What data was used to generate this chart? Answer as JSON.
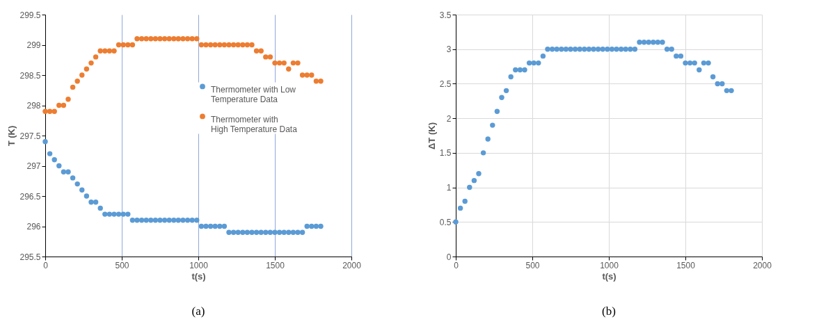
{
  "chart_data": [
    {
      "type": "scatter",
      "xlabel": "t(s)",
      "ylabel": "T (K)",
      "annotations": [
        "(a)"
      ],
      "x": [
        0,
        30,
        60,
        90,
        120,
        150,
        180,
        210,
        240,
        270,
        300,
        330,
        360,
        390,
        420,
        450,
        480,
        510,
        540,
        570,
        600,
        630,
        660,
        690,
        720,
        750,
        780,
        810,
        840,
        870,
        900,
        930,
        960,
        990,
        1020,
        1050,
        1080,
        1110,
        1140,
        1170,
        1200,
        1230,
        1260,
        1290,
        1320,
        1350,
        1380,
        1410,
        1440,
        1470,
        1500,
        1530,
        1560,
        1590,
        1620,
        1650,
        1680,
        1710,
        1740,
        1770,
        1800
      ],
      "series": [
        {
          "name": "Thermometer with Low Temperature Data",
          "color": "#5b9bd5",
          "values": [
            297.4,
            297.2,
            297.1,
            297.0,
            296.9,
            296.9,
            296.8,
            296.7,
            296.6,
            296.5,
            296.4,
            296.4,
            296.3,
            296.2,
            296.2,
            296.2,
            296.2,
            296.2,
            296.2,
            296.1,
            296.1,
            296.1,
            296.1,
            296.1,
            296.1,
            296.1,
            296.1,
            296.1,
            296.1,
            296.1,
            296.1,
            296.1,
            296.1,
            296.1,
            296.0,
            296.0,
            296.0,
            296.0,
            296.0,
            296.0,
            295.9,
            295.9,
            295.9,
            295.9,
            295.9,
            295.9,
            295.9,
            295.9,
            295.9,
            295.9,
            295.9,
            295.9,
            295.9,
            295.9,
            295.9,
            295.9,
            295.9,
            296.0,
            296.0,
            296.0,
            296.0
          ]
        },
        {
          "name": "Thermometer with High Temperature Data",
          "color": "#ed7d31",
          "values": [
            297.9,
            297.9,
            297.9,
            298.0,
            298.0,
            298.1,
            298.3,
            298.4,
            298.5,
            298.6,
            298.7,
            298.8,
            298.9,
            298.9,
            298.9,
            298.9,
            299.0,
            299.0,
            299.0,
            299.0,
            299.1,
            299.1,
            299.1,
            299.1,
            299.1,
            299.1,
            299.1,
            299.1,
            299.1,
            299.1,
            299.1,
            299.1,
            299.1,
            299.1,
            299.0,
            299.0,
            299.0,
            299.0,
            299.0,
            299.0,
            299.0,
            299.0,
            299.0,
            299.0,
            299.0,
            299.0,
            298.9,
            298.9,
            298.8,
            298.8,
            298.7,
            298.7,
            298.7,
            298.6,
            298.7,
            298.7,
            298.5,
            298.5,
            298.5,
            298.4,
            298.4
          ]
        }
      ],
      "xlim": [
        0,
        2000
      ],
      "xticks": [
        0,
        500,
        1000,
        1500,
        2000
      ],
      "ylim": [
        295.5,
        299.5
      ],
      "yticks": [
        295.5,
        296,
        296.5,
        297,
        297.5,
        298,
        298.5,
        299,
        299.5
      ],
      "grid": "x",
      "legend": "right",
      "marker": "circle"
    },
    {
      "type": "scatter",
      "xlabel": "t(s)",
      "ylabel": "ΔT (K)",
      "annotations": [
        "(b)"
      ],
      "x": [
        0,
        30,
        60,
        90,
        120,
        150,
        180,
        210,
        240,
        270,
        300,
        330,
        360,
        390,
        420,
        450,
        480,
        510,
        540,
        570,
        600,
        630,
        660,
        690,
        720,
        750,
        780,
        810,
        840,
        870,
        900,
        930,
        960,
        990,
        1020,
        1050,
        1080,
        1110,
        1140,
        1170,
        1200,
        1230,
        1260,
        1290,
        1320,
        1350,
        1380,
        1410,
        1440,
        1470,
        1500,
        1530,
        1560,
        1590,
        1620,
        1650,
        1680,
        1710,
        1740,
        1770,
        1800
      ],
      "series": [
        {
          "color": "#5b9bd5",
          "values": [
            0.5,
            0.7,
            0.8,
            1.0,
            1.1,
            1.2,
            1.5,
            1.7,
            1.9,
            2.1,
            2.3,
            2.4,
            2.6,
            2.7,
            2.7,
            2.7,
            2.8,
            2.8,
            2.8,
            2.9,
            3.0,
            3.0,
            3.0,
            3.0,
            3.0,
            3.0,
            3.0,
            3.0,
            3.0,
            3.0,
            3.0,
            3.0,
            3.0,
            3.0,
            3.0,
            3.0,
            3.0,
            3.0,
            3.0,
            3.0,
            3.1,
            3.1,
            3.1,
            3.1,
            3.1,
            3.1,
            3.0,
            3.0,
            2.9,
            2.9,
            2.8,
            2.8,
            2.8,
            2.7,
            2.8,
            2.8,
            2.6,
            2.5,
            2.5,
            2.4,
            2.4
          ]
        }
      ],
      "xlim": [
        0,
        2000
      ],
      "xticks": [
        0,
        500,
        1000,
        1500,
        2000
      ],
      "ylim": [
        0,
        3.5
      ],
      "yticks": [
        0,
        0.5,
        1,
        1.5,
        2,
        2.5,
        3,
        3.5
      ],
      "grid": true,
      "marker": "circle"
    }
  ]
}
